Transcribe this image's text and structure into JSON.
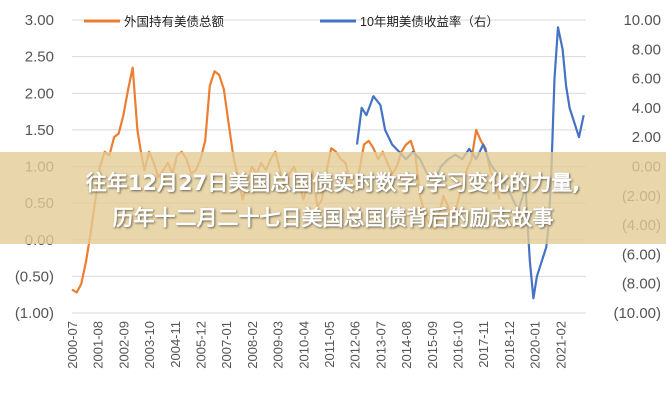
{
  "headline": {
    "line1": "往年12月27日美国总国债实时数字,学习变化的力量,",
    "line2": "历年十二月二十七日美国总国债背后的励志故事"
  },
  "chart_data": {
    "type": "line",
    "legend": {
      "placement": "top",
      "entries": [
        "外国持有美债总额",
        "10年期美债收益率（右）"
      ]
    },
    "colors": {
      "left_series": "#ED7D31",
      "right_series": "#4472C4"
    },
    "x_tick_labels": [
      "2000-07",
      "2001-08",
      "2002-09",
      "2003-10",
      "2004-11",
      "2005-12",
      "2007-01",
      "2008-02",
      "2009-03",
      "2010-04",
      "2011-05",
      "2012-06",
      "2013-07",
      "2014-08",
      "2015-09",
      "2016-10",
      "2017-11",
      "2018-12",
      "2020-01",
      "2021-02"
    ],
    "y_left_ticks": [
      "3.00",
      "2.50",
      "2.00",
      "1.50",
      "1.00",
      "0.50",
      "0.00",
      "(0.50)",
      "(1.00)"
    ],
    "y_right_ticks": [
      "10.00",
      "8.00",
      "6.00",
      "4.00",
      "2.00",
      "0.00",
      "(2.00)",
      "(4.00)",
      "(6.00)",
      "(8.00)",
      "(10.00)"
    ],
    "ylim_left": [
      -1,
      3
    ],
    "ylim_right": [
      -10,
      10
    ],
    "series": [
      {
        "name": "外国持有美债总额",
        "axis": "left",
        "x": [
          2000.6,
          2000.8,
          2001.0,
          2001.2,
          2001.4,
          2001.6,
          2001.8,
          2002.0,
          2002.2,
          2002.4,
          2002.6,
          2002.8,
          2003.0,
          2003.2,
          2003.4,
          2003.6,
          2003.7,
          2003.9,
          2004.1,
          2004.3,
          2004.5,
          2004.7,
          2004.9,
          2005.1,
          2005.3,
          2005.5,
          2005.7,
          2005.9,
          2006.1,
          2006.3,
          2006.5,
          2006.7,
          2006.9,
          2007.1,
          2007.3,
          2007.5,
          2007.7,
          2007.9,
          2008.1,
          2008.3,
          2008.5,
          2008.7,
          2008.9,
          2009.1,
          2009.3,
          2009.5,
          2009.7,
          2009.9,
          2010.1,
          2010.3,
          2010.5,
          2010.7,
          2010.9,
          2011.1,
          2011.3,
          2011.5,
          2011.7,
          2011.9,
          2012.1,
          2012.3,
          2012.5,
          2012.7,
          2012.9,
          2013.1,
          2013.3,
          2013.5,
          2013.7,
          2013.9,
          2014.1,
          2014.3,
          2014.5,
          2014.7,
          2014.9,
          2015.1,
          2015.3,
          2015.5,
          2015.7,
          2015.9,
          2016.1,
          2016.3,
          2016.5,
          2016.7,
          2016.9,
          2017.1,
          2017.3,
          2017.5,
          2017.7,
          2017.9,
          2018.1,
          2018.3,
          2018.5,
          2018.7,
          2018.9
        ],
        "values": [
          -0.68,
          -0.72,
          -0.6,
          -0.3,
          0.1,
          0.55,
          1.0,
          1.2,
          1.15,
          1.4,
          1.45,
          1.7,
          2.05,
          2.35,
          1.5,
          1.1,
          0.95,
          1.2,
          1.05,
          0.85,
          0.95,
          1.05,
          0.9,
          1.15,
          1.2,
          1.1,
          0.9,
          0.95,
          1.1,
          1.35,
          2.1,
          2.3,
          2.25,
          2.05,
          1.6,
          1.15,
          0.85,
          0.55,
          0.75,
          1.0,
          0.9,
          1.05,
          0.95,
          1.1,
          1.2,
          0.95,
          0.75,
          0.9,
          1.0,
          0.8,
          0.55,
          0.75,
          0.95,
          0.45,
          0.55,
          0.95,
          1.25,
          1.2,
          1.1,
          1.05,
          0.8,
          0.7,
          0.95,
          1.3,
          1.35,
          1.25,
          1.1,
          1.2,
          1.05,
          0.9,
          1.0,
          1.2,
          1.3,
          1.35,
          1.15,
          0.6,
          0.35,
          0.2,
          0.15,
          0.35,
          0.6,
          0.45,
          0.3,
          0.5,
          0.75,
          0.95,
          1.1,
          1.5,
          1.35,
          1.25,
          0.95,
          0.8,
          0.55
        ]
      },
      {
        "name": "10年期美债收益率（右）",
        "axis": "right",
        "x": [
          2012.8,
          2013.0,
          2013.2,
          2013.5,
          2013.8,
          2014.0,
          2014.3,
          2014.6,
          2014.9,
          2015.2,
          2015.5,
          2015.8,
          2016.1,
          2016.4,
          2016.7,
          2017.0,
          2017.3,
          2017.6,
          2017.9,
          2018.2,
          2018.5,
          2018.8,
          2019.1,
          2019.4,
          2019.7,
          2019.9,
          2020.0,
          2020.1,
          2020.2,
          2020.35,
          2020.5,
          2020.7,
          2020.9,
          2021.0,
          2021.1,
          2021.25,
          2021.4,
          2021.6,
          2021.75,
          2021.9,
          2022.1,
          2022.3,
          2022.5
        ],
        "values": [
          1.5,
          4.0,
          3.5,
          4.8,
          4.2,
          2.5,
          1.5,
          1.0,
          0.5,
          1.0,
          0.5,
          -0.5,
          -1.0,
          0.0,
          0.5,
          0.8,
          0.5,
          1.2,
          0.5,
          1.5,
          0.2,
          -0.5,
          -1.0,
          -2.0,
          -3.0,
          -2.0,
          -1.0,
          -4.0,
          -6.5,
          -9.0,
          -7.5,
          -6.5,
          -5.5,
          -4.0,
          -1.0,
          6.0,
          9.5,
          8.0,
          5.5,
          4.0,
          3.0,
          2.0,
          3.5
        ]
      }
    ]
  }
}
